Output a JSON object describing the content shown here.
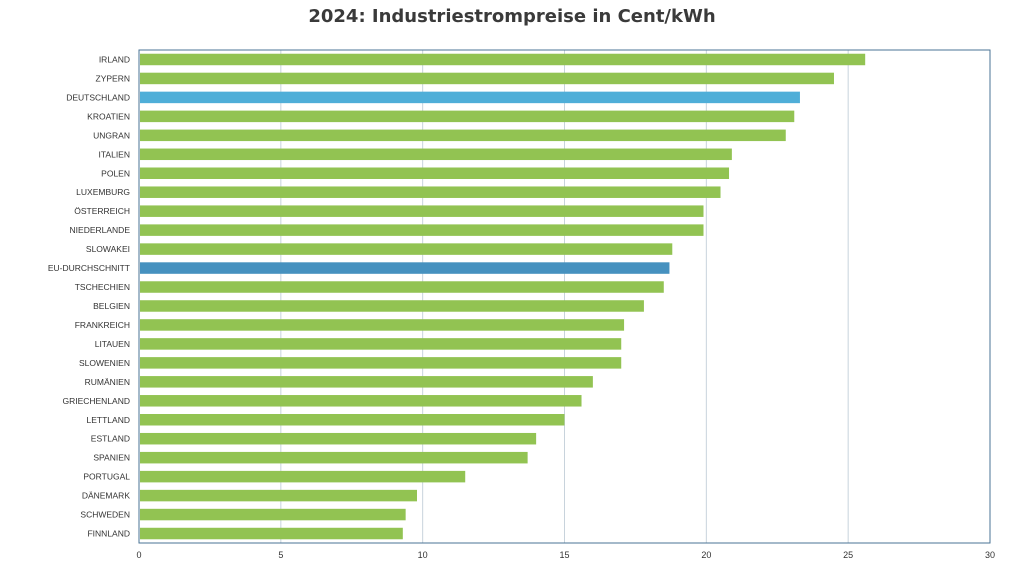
{
  "chart_data": {
    "type": "bar",
    "orientation": "horizontal",
    "title": "2024: Industriestrompreise in Cent/kWh",
    "xlabel": "",
    "ylabel": "",
    "xlim": [
      0,
      30
    ],
    "x_ticks": [
      0,
      5,
      10,
      15,
      20,
      25,
      30
    ],
    "grid": "vertical",
    "legend": "none",
    "colors": {
      "default": "#92c352",
      "deutschland": "#4faed8",
      "eu": "#4691bf",
      "grid": "#c8d3dc",
      "axis": "#4a7394"
    },
    "categories": [
      "IRLAND",
      "ZYPERN",
      "DEUTSCHLAND",
      "KROATIEN",
      "UNGRAN",
      "ITALIEN",
      "POLEN",
      "LUXEMBURG",
      "ÖSTERREICH",
      "NIEDERLANDE",
      "SLOWAKEI",
      "EU-DURCHSCHNITT",
      "TSCHECHIEN",
      "BELGIEN",
      "FRANKREICH",
      "LITAUEN",
      "SLOWENIEN",
      "RUMÄNIEN",
      "GRIECHENLAND",
      "LETTLAND",
      "ESTLAND",
      "SPANIEN",
      "PORTUGAL",
      "DÄNEMARK",
      "SCHWEDEN",
      "FINNLAND"
    ],
    "values": [
      25.6,
      24.5,
      23.3,
      23.1,
      22.8,
      20.9,
      20.8,
      20.5,
      19.9,
      19.9,
      18.8,
      18.7,
      18.5,
      17.8,
      17.1,
      17.0,
      17.0,
      16.0,
      15.6,
      15.0,
      14.0,
      13.7,
      11.5,
      9.8,
      9.4,
      9.3
    ],
    "highlight": {
      "DEUTSCHLAND": "deutschland",
      "EU-DURCHSCHNITT": "eu"
    }
  }
}
